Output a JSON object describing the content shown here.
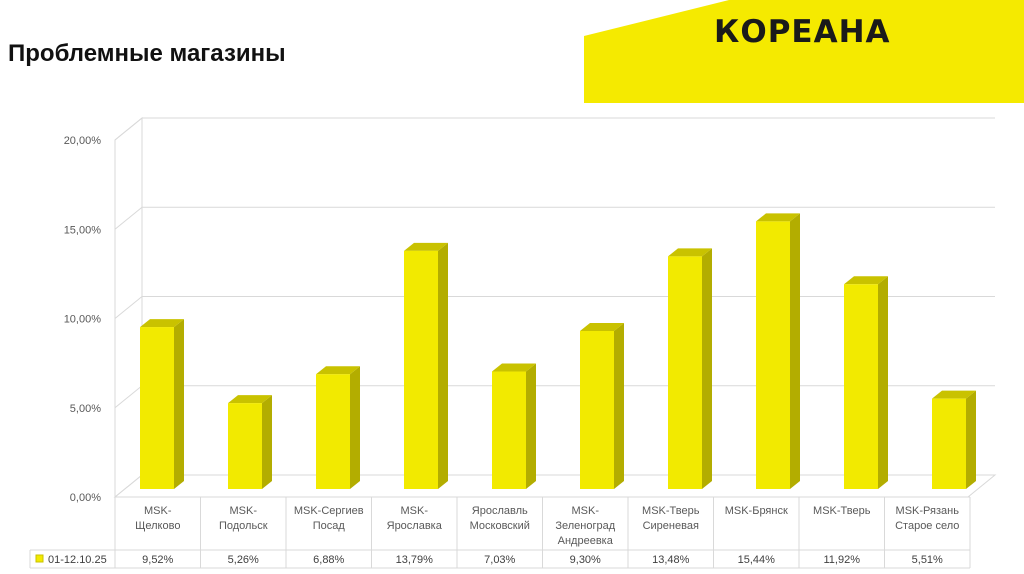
{
  "page": {
    "title": "Проблемные магазины",
    "logo_text": "КОРЕАНА"
  },
  "colors": {
    "accent_yellow": "#f5ea00",
    "bar_front": "#f2ea00",
    "bar_side": "#b3ad00",
    "bar_top": "#c9c200"
  },
  "chart_data": {
    "type": "bar",
    "categories": [
      [
        "MSK-",
        "Щелково"
      ],
      [
        "MSK-",
        "Подольск"
      ],
      [
        "MSK-Сергиев",
        "Посад"
      ],
      [
        "MSK-",
        "Ярославка"
      ],
      [
        "Ярославль",
        "Московский"
      ],
      [
        "MSK-",
        "Зеленоград",
        "Андреевка"
      ],
      [
        "MSK-Тверь",
        "Сиреневая"
      ],
      [
        "MSK-Брянск"
      ],
      [
        "MSK-Тверь"
      ],
      [
        "MSK-Рязань",
        "Старое село"
      ]
    ],
    "series": [
      {
        "name": "01-12.10.25",
        "values": [
          9.52,
          5.26,
          6.88,
          13.79,
          7.03,
          9.3,
          13.48,
          15.44,
          11.92,
          5.51
        ],
        "labels": [
          "9,52%",
          "5,26%",
          "6,88%",
          "13,79%",
          "7,03%",
          "9,30%",
          "13,48%",
          "15,44%",
          "11,92%",
          "5,51%"
        ]
      }
    ],
    "ylim": [
      0,
      20
    ],
    "yticks": [
      "0,00%",
      "5,00%",
      "10,00%",
      "15,00%",
      "20,00%"
    ],
    "grid": true,
    "data_table": true,
    "three_d": true
  }
}
